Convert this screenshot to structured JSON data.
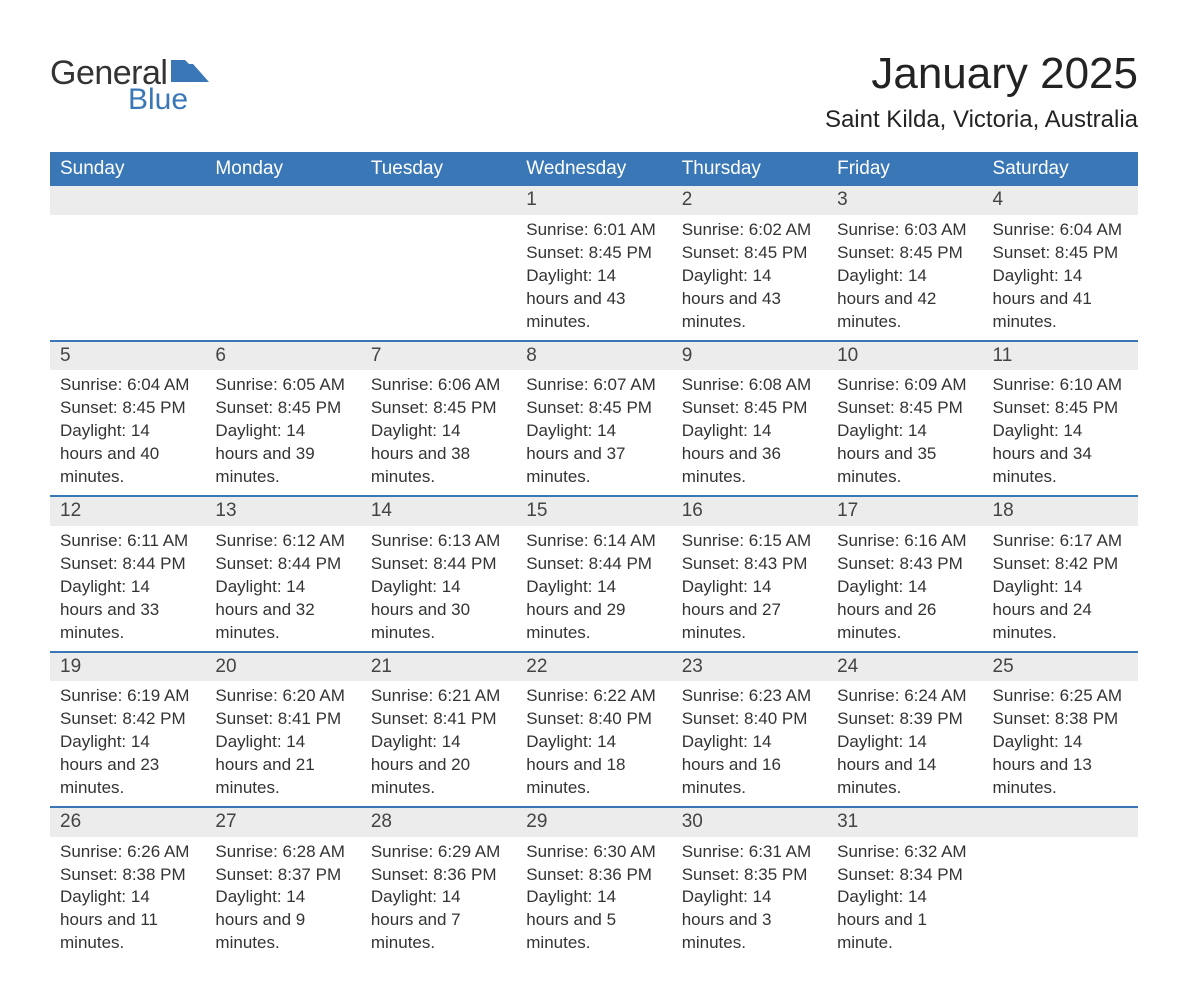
{
  "logo": {
    "text1": "General",
    "text2": "Blue",
    "icon_color": "#3a77b7"
  },
  "title": "January 2025",
  "location": "Saint Kilda, Victoria, Australia",
  "colors": {
    "header_bg": "#3a77b7",
    "header_text": "#ffffff",
    "daynum_bg": "#ececec",
    "daynum_text": "#444444",
    "body_text": "#333333",
    "rule": "#3a77b7",
    "page_bg": "#ffffff"
  },
  "day_headers": [
    "Sunday",
    "Monday",
    "Tuesday",
    "Wednesday",
    "Thursday",
    "Friday",
    "Saturday"
  ],
  "weeks": [
    [
      null,
      null,
      null,
      {
        "n": "1",
        "sunrise": "Sunrise: 6:01 AM",
        "sunset": "Sunset: 8:45 PM",
        "daylight": "Daylight: 14 hours and 43 minutes."
      },
      {
        "n": "2",
        "sunrise": "Sunrise: 6:02 AM",
        "sunset": "Sunset: 8:45 PM",
        "daylight": "Daylight: 14 hours and 43 minutes."
      },
      {
        "n": "3",
        "sunrise": "Sunrise: 6:03 AM",
        "sunset": "Sunset: 8:45 PM",
        "daylight": "Daylight: 14 hours and 42 minutes."
      },
      {
        "n": "4",
        "sunrise": "Sunrise: 6:04 AM",
        "sunset": "Sunset: 8:45 PM",
        "daylight": "Daylight: 14 hours and 41 minutes."
      }
    ],
    [
      {
        "n": "5",
        "sunrise": "Sunrise: 6:04 AM",
        "sunset": "Sunset: 8:45 PM",
        "daylight": "Daylight: 14 hours and 40 minutes."
      },
      {
        "n": "6",
        "sunrise": "Sunrise: 6:05 AM",
        "sunset": "Sunset: 8:45 PM",
        "daylight": "Daylight: 14 hours and 39 minutes."
      },
      {
        "n": "7",
        "sunrise": "Sunrise: 6:06 AM",
        "sunset": "Sunset: 8:45 PM",
        "daylight": "Daylight: 14 hours and 38 minutes."
      },
      {
        "n": "8",
        "sunrise": "Sunrise: 6:07 AM",
        "sunset": "Sunset: 8:45 PM",
        "daylight": "Daylight: 14 hours and 37 minutes."
      },
      {
        "n": "9",
        "sunrise": "Sunrise: 6:08 AM",
        "sunset": "Sunset: 8:45 PM",
        "daylight": "Daylight: 14 hours and 36 minutes."
      },
      {
        "n": "10",
        "sunrise": "Sunrise: 6:09 AM",
        "sunset": "Sunset: 8:45 PM",
        "daylight": "Daylight: 14 hours and 35 minutes."
      },
      {
        "n": "11",
        "sunrise": "Sunrise: 6:10 AM",
        "sunset": "Sunset: 8:45 PM",
        "daylight": "Daylight: 14 hours and 34 minutes."
      }
    ],
    [
      {
        "n": "12",
        "sunrise": "Sunrise: 6:11 AM",
        "sunset": "Sunset: 8:44 PM",
        "daylight": "Daylight: 14 hours and 33 minutes."
      },
      {
        "n": "13",
        "sunrise": "Sunrise: 6:12 AM",
        "sunset": "Sunset: 8:44 PM",
        "daylight": "Daylight: 14 hours and 32 minutes."
      },
      {
        "n": "14",
        "sunrise": "Sunrise: 6:13 AM",
        "sunset": "Sunset: 8:44 PM",
        "daylight": "Daylight: 14 hours and 30 minutes."
      },
      {
        "n": "15",
        "sunrise": "Sunrise: 6:14 AM",
        "sunset": "Sunset: 8:44 PM",
        "daylight": "Daylight: 14 hours and 29 minutes."
      },
      {
        "n": "16",
        "sunrise": "Sunrise: 6:15 AM",
        "sunset": "Sunset: 8:43 PM",
        "daylight": "Daylight: 14 hours and 27 minutes."
      },
      {
        "n": "17",
        "sunrise": "Sunrise: 6:16 AM",
        "sunset": "Sunset: 8:43 PM",
        "daylight": "Daylight: 14 hours and 26 minutes."
      },
      {
        "n": "18",
        "sunrise": "Sunrise: 6:17 AM",
        "sunset": "Sunset: 8:42 PM",
        "daylight": "Daylight: 14 hours and 24 minutes."
      }
    ],
    [
      {
        "n": "19",
        "sunrise": "Sunrise: 6:19 AM",
        "sunset": "Sunset: 8:42 PM",
        "daylight": "Daylight: 14 hours and 23 minutes."
      },
      {
        "n": "20",
        "sunrise": "Sunrise: 6:20 AM",
        "sunset": "Sunset: 8:41 PM",
        "daylight": "Daylight: 14 hours and 21 minutes."
      },
      {
        "n": "21",
        "sunrise": "Sunrise: 6:21 AM",
        "sunset": "Sunset: 8:41 PM",
        "daylight": "Daylight: 14 hours and 20 minutes."
      },
      {
        "n": "22",
        "sunrise": "Sunrise: 6:22 AM",
        "sunset": "Sunset: 8:40 PM",
        "daylight": "Daylight: 14 hours and 18 minutes."
      },
      {
        "n": "23",
        "sunrise": "Sunrise: 6:23 AM",
        "sunset": "Sunset: 8:40 PM",
        "daylight": "Daylight: 14 hours and 16 minutes."
      },
      {
        "n": "24",
        "sunrise": "Sunrise: 6:24 AM",
        "sunset": "Sunset: 8:39 PM",
        "daylight": "Daylight: 14 hours and 14 minutes."
      },
      {
        "n": "25",
        "sunrise": "Sunrise: 6:25 AM",
        "sunset": "Sunset: 8:38 PM",
        "daylight": "Daylight: 14 hours and 13 minutes."
      }
    ],
    [
      {
        "n": "26",
        "sunrise": "Sunrise: 6:26 AM",
        "sunset": "Sunset: 8:38 PM",
        "daylight": "Daylight: 14 hours and 11 minutes."
      },
      {
        "n": "27",
        "sunrise": "Sunrise: 6:28 AM",
        "sunset": "Sunset: 8:37 PM",
        "daylight": "Daylight: 14 hours and 9 minutes."
      },
      {
        "n": "28",
        "sunrise": "Sunrise: 6:29 AM",
        "sunset": "Sunset: 8:36 PM",
        "daylight": "Daylight: 14 hours and 7 minutes."
      },
      {
        "n": "29",
        "sunrise": "Sunrise: 6:30 AM",
        "sunset": "Sunset: 8:36 PM",
        "daylight": "Daylight: 14 hours and 5 minutes."
      },
      {
        "n": "30",
        "sunrise": "Sunrise: 6:31 AM",
        "sunset": "Sunset: 8:35 PM",
        "daylight": "Daylight: 14 hours and 3 minutes."
      },
      {
        "n": "31",
        "sunrise": "Sunrise: 6:32 AM",
        "sunset": "Sunset: 8:34 PM",
        "daylight": "Daylight: 14 hours and 1 minute."
      },
      null
    ]
  ]
}
